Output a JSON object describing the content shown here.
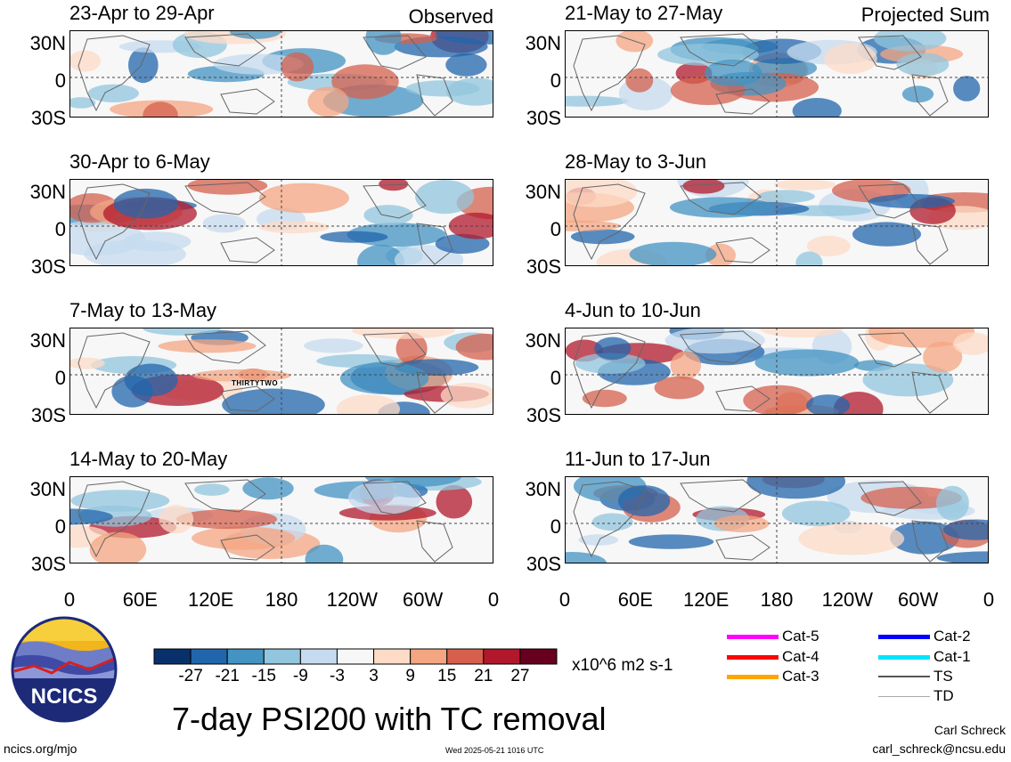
{
  "observed_label": "Observed",
  "projected_label": "Projected Sum",
  "panels_left": [
    {
      "title": "23-Apr to 29-Apr"
    },
    {
      "title": "30-Apr to 6-May"
    },
    {
      "title": "7-May to 13-May",
      "storm_label": "THIRTYTWO"
    },
    {
      "title": "14-May to 20-May"
    }
  ],
  "panels_right": [
    {
      "title": "21-May to 27-May"
    },
    {
      "title": "28-May to 3-Jun"
    },
    {
      "title": "4-Jun to 10-Jun"
    },
    {
      "title": "11-Jun to 17-Jun"
    }
  ],
  "lat_labels": [
    "30N",
    "0",
    "30S"
  ],
  "lon_labels": [
    "0",
    "60E",
    "120E",
    "180",
    "120W",
    "60W",
    "0"
  ],
  "colorbar": {
    "labels": [
      "-27",
      "-21",
      "-15",
      "-9",
      "-3",
      "3",
      "9",
      "15",
      "21",
      "27"
    ],
    "colors": [
      "#08306b",
      "#2166ac",
      "#4393c3",
      "#92c5de",
      "#c6dbef",
      "#f7f7f7",
      "#fddbc7",
      "#f4a582",
      "#d6604d",
      "#b2182b",
      "#67001f"
    ],
    "units": "x10^6 m2 s-1"
  },
  "title": "7-day PSI200 with TC removal",
  "legend": [
    {
      "label": "Cat-5",
      "color": "#ff00ff"
    },
    {
      "label": "Cat-4",
      "color": "#ff0000"
    },
    {
      "label": "Cat-3",
      "color": "#ffa500"
    },
    {
      "label": "Cat-2",
      "color": "#0000ff"
    },
    {
      "label": "Cat-1",
      "color": "#00e5ff"
    },
    {
      "label": "TS",
      "color": "#555555"
    },
    {
      "label": "TD",
      "color": "#aaaaaa"
    }
  ],
  "logo_text": "NCICS",
  "footer": {
    "url": "ncics.org/mjo",
    "timestamp": "Wed 2025-05-21 1016 UTC",
    "author": "Carl Schreck",
    "email": "carl_schreck@ncsu.edu"
  }
}
